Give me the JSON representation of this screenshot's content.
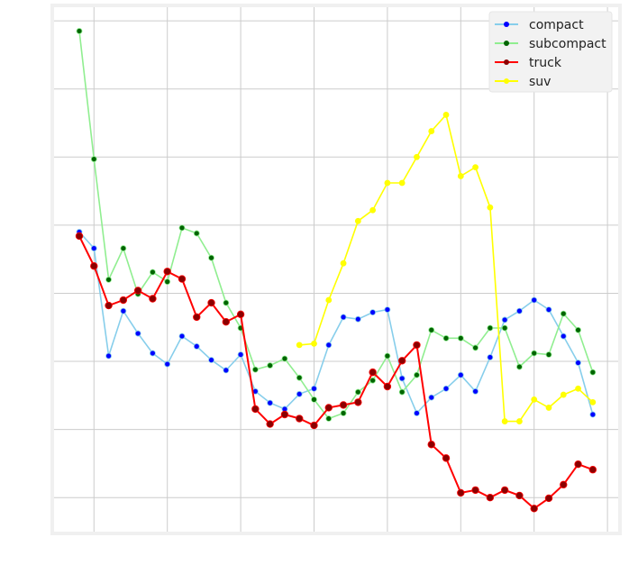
{
  "chart_data": {
    "type": "line",
    "title": "",
    "xlabel": "",
    "ylabel": "",
    "xlim": [
      -1.72,
      36.73
    ],
    "ylim": [
      -0.5,
      7.2
    ],
    "xticks": [
      1,
      6,
      11,
      16,
      21,
      26,
      31,
      36
    ],
    "yticks": [
      0,
      1,
      2,
      3,
      4,
      5,
      6,
      7
    ],
    "grid": true,
    "legend_position": "top-right",
    "x": [
      0,
      1,
      2,
      3,
      4,
      5,
      6,
      7,
      8,
      9,
      10,
      11,
      12,
      13,
      14,
      15,
      16,
      17,
      18,
      19,
      20,
      21,
      22,
      23,
      24,
      25,
      26,
      27,
      28,
      29,
      30,
      31,
      32,
      33,
      34,
      35
    ],
    "series": [
      {
        "name": "compact",
        "color": "#87ceeb",
        "marker": "#0000ff",
        "values": [
          3.9,
          3.66,
          2.08,
          2.74,
          2.41,
          2.12,
          1.96,
          2.37,
          2.22,
          2.02,
          1.87,
          2.1,
          1.56,
          1.39,
          1.3,
          1.52,
          1.6,
          2.24,
          2.65,
          2.62,
          2.72,
          2.76,
          1.75,
          1.24,
          1.47,
          1.6,
          1.8,
          1.56,
          2.06,
          2.61,
          2.74,
          2.9,
          2.76,
          2.37,
          1.98,
          1.22
        ]
      },
      {
        "name": "subcompact",
        "color": "#90ee90",
        "marker": "#006400",
        "values": [
          6.85,
          4.97,
          3.2,
          3.66,
          2.99,
          3.31,
          3.17,
          3.96,
          3.88,
          3.52,
          2.86,
          2.49,
          1.88,
          1.94,
          2.04,
          1.76,
          1.44,
          1.16,
          1.24,
          1.55,
          1.72,
          2.08,
          1.55,
          1.8,
          2.46,
          2.34,
          2.34,
          2.2,
          2.49,
          2.49,
          1.92,
          2.12,
          2.1,
          2.7,
          2.46,
          1.84
        ]
      },
      {
        "name": "truck",
        "color": "#ff0000",
        "marker": "#8b0000",
        "values": [
          3.84,
          3.4,
          2.82,
          2.9,
          3.04,
          2.92,
          3.32,
          3.21,
          2.65,
          2.86,
          2.58,
          2.69,
          1.3,
          1.08,
          1.22,
          1.16,
          1.06,
          1.32,
          1.36,
          1.4,
          1.84,
          1.63,
          2.01,
          2.24,
          0.78,
          0.58,
          0.07,
          0.11,
          0.0,
          0.11,
          0.03,
          -0.16,
          -0.01,
          0.19,
          0.49,
          0.41
        ]
      },
      {
        "name": "suv",
        "color": "#ffff00",
        "marker": "#ffff00",
        "values": [
          null,
          null,
          null,
          null,
          null,
          null,
          null,
          null,
          null,
          null,
          null,
          null,
          null,
          null,
          null,
          2.24,
          2.26,
          2.9,
          3.44,
          4.06,
          4.22,
          4.62,
          4.62,
          5.0,
          5.38,
          5.62,
          4.72,
          4.85,
          4.26,
          1.12,
          1.12,
          1.44,
          1.32,
          1.51,
          1.6,
          1.4
        ]
      }
    ]
  }
}
